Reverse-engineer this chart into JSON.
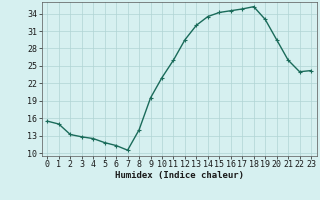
{
  "x": [
    0,
    1,
    2,
    3,
    4,
    5,
    6,
    7,
    8,
    9,
    10,
    11,
    12,
    13,
    14,
    15,
    16,
    17,
    18,
    19,
    20,
    21,
    22,
    23
  ],
  "y": [
    15.5,
    15.0,
    13.2,
    12.8,
    12.5,
    11.8,
    11.3,
    10.5,
    14.0,
    19.5,
    23.0,
    26.0,
    29.5,
    32.0,
    33.5,
    34.2,
    34.5,
    34.8,
    35.2,
    33.0,
    29.5,
    26.0,
    24.0,
    24.2
  ],
  "line_color": "#1a6b5a",
  "marker": "+",
  "marker_size": 3,
  "bg_color": "#d6f0f0",
  "grid_color": "#b0d4d4",
  "xlabel": "Humidex (Indice chaleur)",
  "xlim": [
    -0.5,
    23.5
  ],
  "ylim": [
    9.5,
    36
  ],
  "yticks": [
    10,
    13,
    16,
    19,
    22,
    25,
    28,
    31,
    34
  ],
  "xticks": [
    0,
    1,
    2,
    3,
    4,
    5,
    6,
    7,
    8,
    9,
    10,
    11,
    12,
    13,
    14,
    15,
    16,
    17,
    18,
    19,
    20,
    21,
    22,
    23
  ],
  "xlabel_fontsize": 6.5,
  "tick_fontsize": 6,
  "linewidth": 1.0,
  "marker_edge_width": 0.8
}
